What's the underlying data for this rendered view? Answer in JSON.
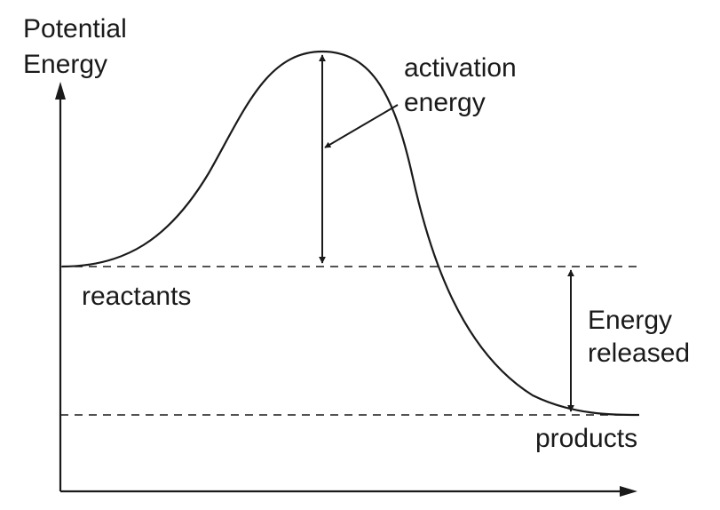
{
  "diagram": {
    "type": "energy-profile",
    "y_axis_label": [
      "Potential",
      "Energy"
    ],
    "activation_label": [
      "activation",
      "energy"
    ],
    "reactants_label": "reactants",
    "released_label": [
      "Energy",
      "released"
    ],
    "products_label": "products",
    "colors": {
      "ink": "#1a1a1a",
      "background": "#ffffff"
    }
  }
}
